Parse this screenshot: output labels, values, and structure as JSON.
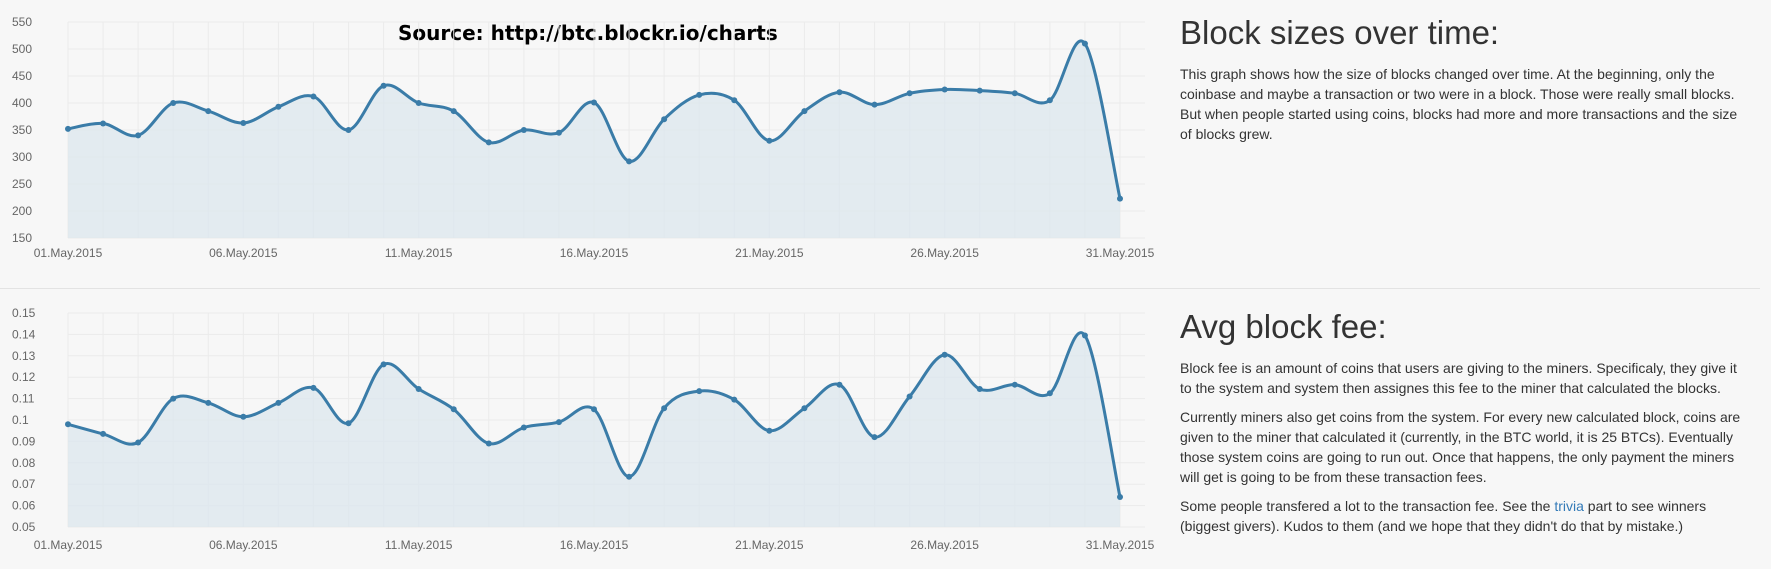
{
  "source_label": "Source: http://btc.blockr.io/charts",
  "colors": {
    "line": "#3a7ca8",
    "fill": "#dde7ee",
    "grid": "#ebebeb",
    "text": "#333333",
    "link": "#337ab7"
  },
  "sections": [
    {
      "heading": "Block sizes over time:",
      "paragraphs": [
        "This graph shows how the size of blocks changed over time. At the beginning, only the coinbase and maybe a transaction or two were in a block. Those were really small blocks. But when people started using coins, blocks had more and more transactions and the size of blocks grew."
      ]
    },
    {
      "heading": "Avg block fee:",
      "paragraphs": [
        "Block fee is an amount of coins that users are giving to the miners. Specificaly, they give it to the system and system then assignes this fee to the miner that calculated the blocks.",
        "Currently miners also get coins from the system. For every new calculated block, coins are given to the miner that calculated it (currently, in the BTC world, it is 25 BTCs). Eventually those system coins are going to run out. Once that happens, the only payment the miners will get is going to be from these transaction fees."
      ],
      "trivia_paragraph": {
        "before": "Some people transfered a lot to the transaction fee. See the ",
        "link": "trivia",
        "after": " part to see winners (biggest givers). Kudos to them (and we hope that they didn't do that by mistake.)"
      }
    }
  ],
  "chart_data": [
    {
      "type": "area",
      "title": "",
      "xlabel": "",
      "ylabel": "",
      "grid": true,
      "ylim": [
        150,
        550
      ],
      "y_ticks": [
        "150",
        "200",
        "250",
        "300",
        "350",
        "400",
        "450",
        "500",
        "550"
      ],
      "x_ticks": [
        "01.May.2015",
        "06.May.2015",
        "11.May.2015",
        "16.May.2015",
        "21.May.2015",
        "26.May.2015",
        "31.May.2015"
      ],
      "x": [
        "01.May.2015",
        "02.May.2015",
        "03.May.2015",
        "04.May.2015",
        "05.May.2015",
        "06.May.2015",
        "07.May.2015",
        "08.May.2015",
        "09.May.2015",
        "10.May.2015",
        "11.May.2015",
        "12.May.2015",
        "13.May.2015",
        "14.May.2015",
        "15.May.2015",
        "16.May.2015",
        "17.May.2015",
        "18.May.2015",
        "19.May.2015",
        "20.May.2015",
        "21.May.2015",
        "22.May.2015",
        "23.May.2015",
        "24.May.2015",
        "25.May.2015",
        "26.May.2015",
        "27.May.2015",
        "28.May.2015",
        "29.May.2015",
        "30.May.2015",
        "31.May.2015"
      ],
      "values": [
        352,
        362,
        340,
        400,
        385,
        363,
        393,
        412,
        350,
        432,
        400,
        385,
        327,
        350,
        345,
        401,
        292,
        370,
        415,
        405,
        330,
        385,
        420,
        397,
        418,
        425,
        423,
        418,
        405,
        510,
        223
      ]
    },
    {
      "type": "area",
      "title": "",
      "xlabel": "",
      "ylabel": "",
      "grid": true,
      "ylim": [
        0.05,
        0.15
      ],
      "y_ticks": [
        "0.05",
        "0.06",
        "0.07",
        "0.08",
        "0.09",
        "0.1",
        "0.11",
        "0.12",
        "0.13",
        "0.14",
        "0.15"
      ],
      "x_ticks": [
        "01.May.2015",
        "06.May.2015",
        "11.May.2015",
        "16.May.2015",
        "21.May.2015",
        "26.May.2015",
        "31.May.2015"
      ],
      "x": [
        "01.May.2015",
        "02.May.2015",
        "03.May.2015",
        "04.May.2015",
        "05.May.2015",
        "06.May.2015",
        "07.May.2015",
        "08.May.2015",
        "09.May.2015",
        "10.May.2015",
        "11.May.2015",
        "12.May.2015",
        "13.May.2015",
        "14.May.2015",
        "15.May.2015",
        "16.May.2015",
        "17.May.2015",
        "18.May.2015",
        "19.May.2015",
        "20.May.2015",
        "21.May.2015",
        "22.May.2015",
        "23.May.2015",
        "24.May.2015",
        "25.May.2015",
        "26.May.2015",
        "27.May.2015",
        "28.May.2015",
        "29.May.2015",
        "30.May.2015",
        "31.May.2015"
      ],
      "values": [
        0.098,
        0.0935,
        0.0895,
        0.11,
        0.108,
        0.1015,
        0.108,
        0.115,
        0.0985,
        0.126,
        0.1145,
        0.105,
        0.089,
        0.0965,
        0.099,
        0.105,
        0.0735,
        0.1055,
        0.1135,
        0.1095,
        0.095,
        0.1055,
        0.1165,
        0.092,
        0.111,
        0.1305,
        0.1145,
        0.1165,
        0.1125,
        0.1395,
        0.064
      ]
    }
  ]
}
